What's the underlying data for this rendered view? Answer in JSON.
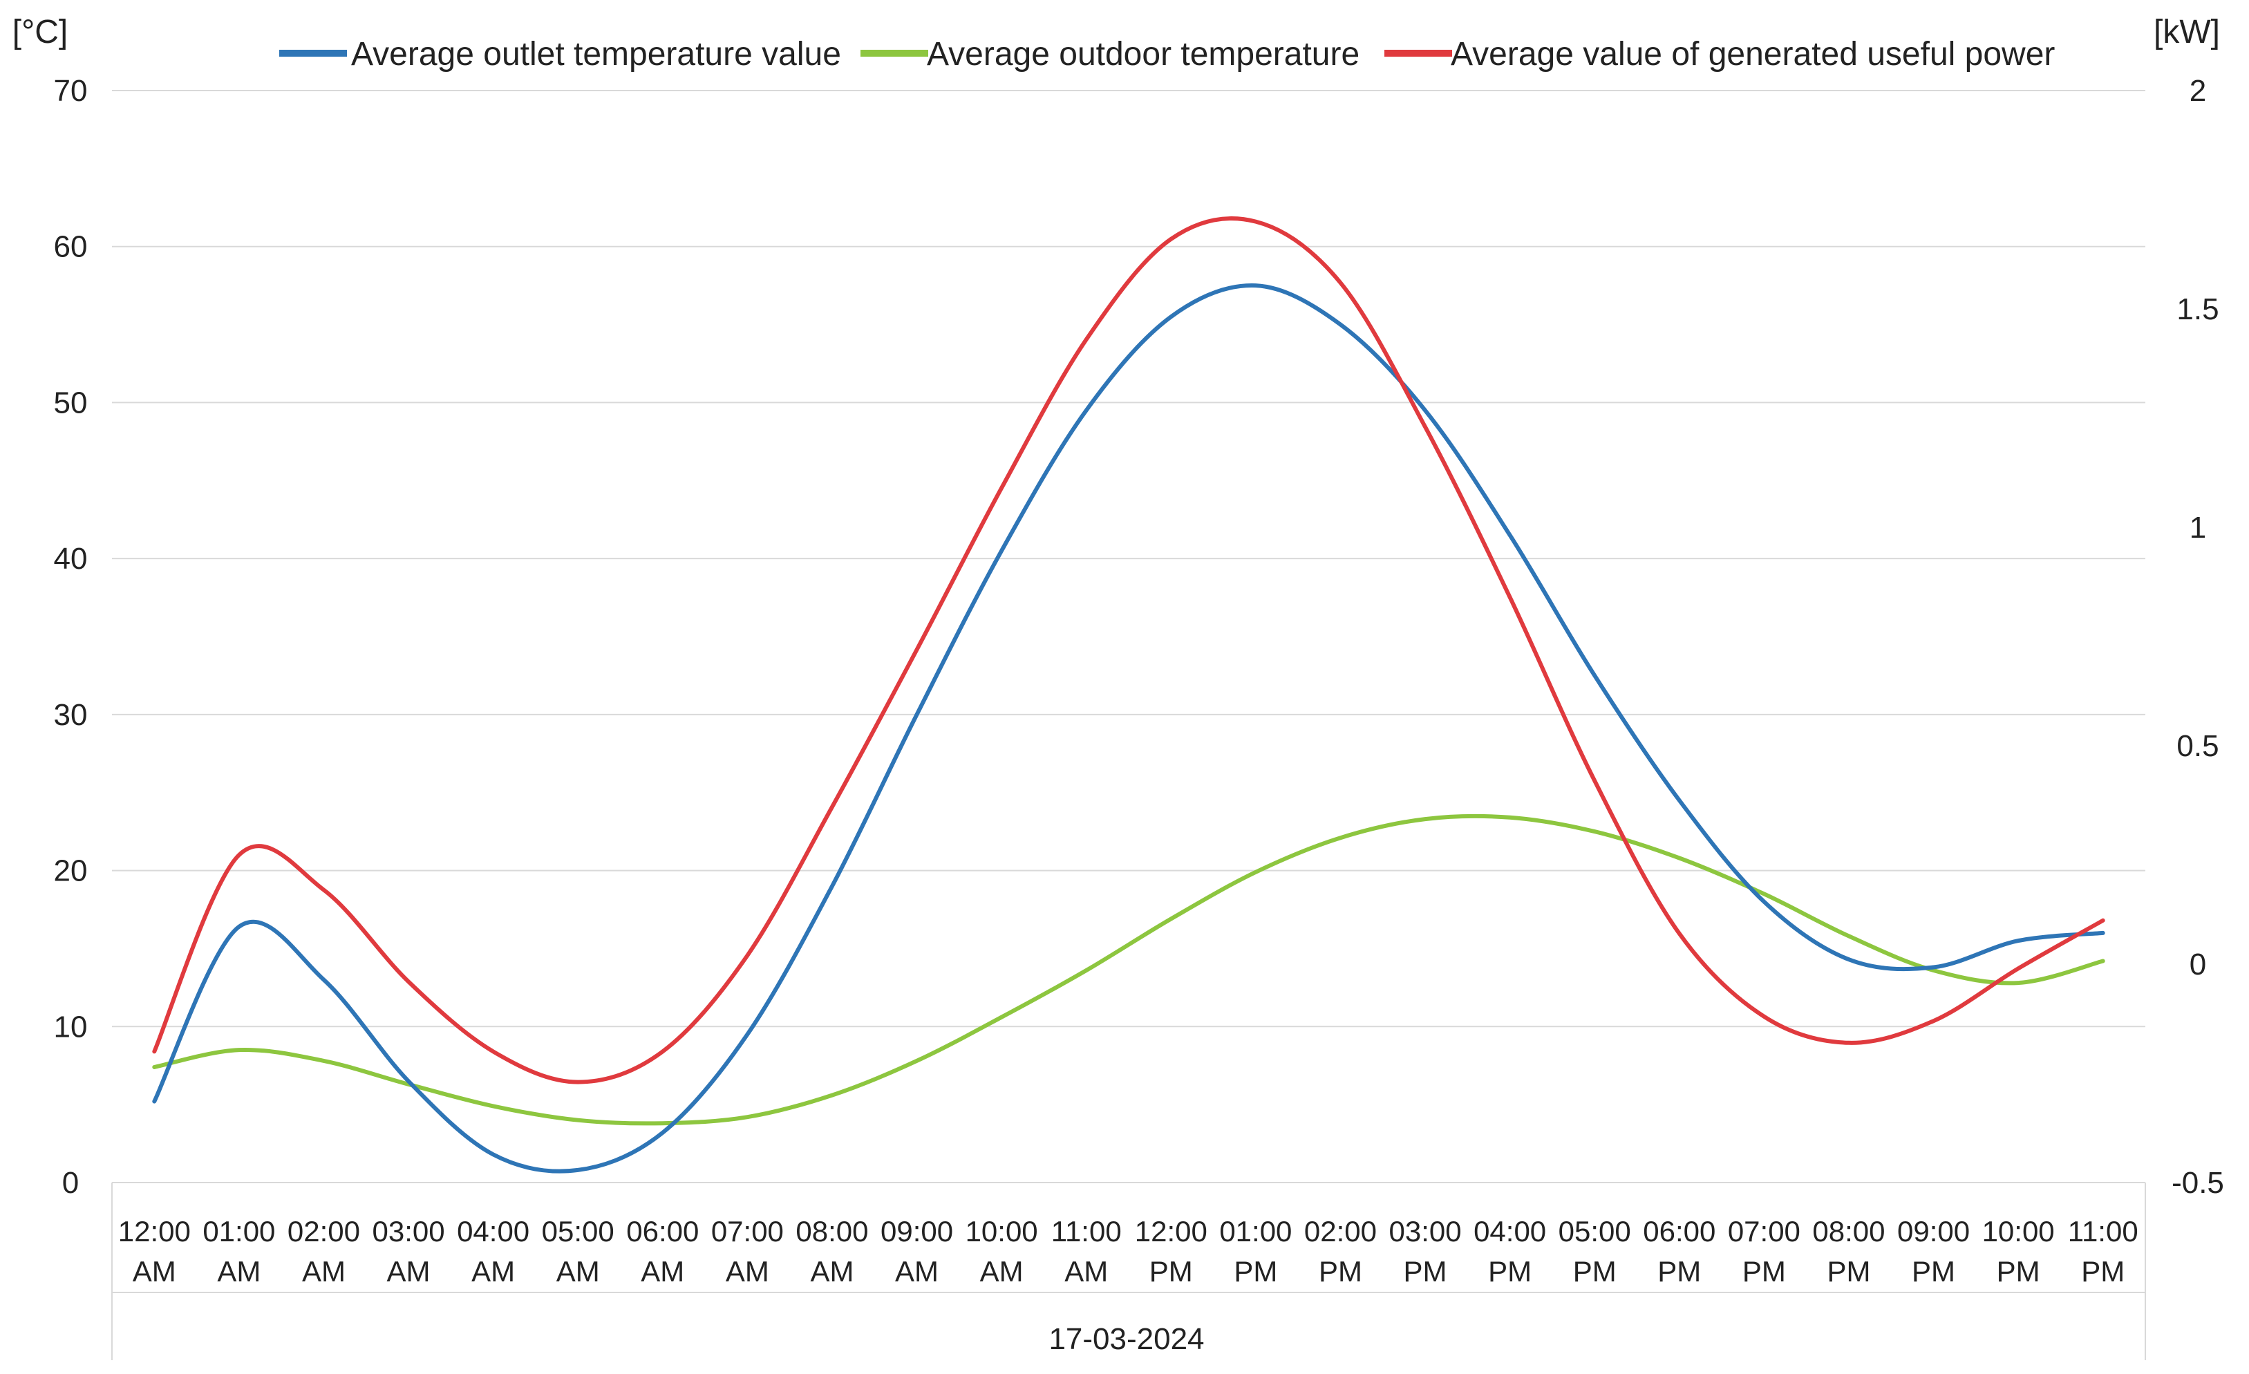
{
  "chart_data": {
    "type": "line",
    "title": "",
    "xlabel": "17-03-2024",
    "left_axis": {
      "unit": "[°C]",
      "ylim": [
        0,
        70
      ],
      "ticks": [
        0,
        10,
        20,
        30,
        40,
        50,
        60,
        70
      ]
    },
    "right_axis": {
      "unit": "[kW]",
      "ylim": [
        -0.5,
        2
      ],
      "ticks": [
        "-0.5",
        "0",
        "0.5",
        "1",
        "1.5",
        "2"
      ]
    },
    "categories": [
      [
        "12:00",
        "AM"
      ],
      [
        "01:00",
        "AM"
      ],
      [
        "02:00",
        "AM"
      ],
      [
        "03:00",
        "AM"
      ],
      [
        "04:00",
        "AM"
      ],
      [
        "05:00",
        "AM"
      ],
      [
        "06:00",
        "AM"
      ],
      [
        "07:00",
        "AM"
      ],
      [
        "08:00",
        "AM"
      ],
      [
        "09:00",
        "AM"
      ],
      [
        "10:00",
        "AM"
      ],
      [
        "11:00",
        "AM"
      ],
      [
        "12:00",
        "PM"
      ],
      [
        "01:00",
        "PM"
      ],
      [
        "02:00",
        "PM"
      ],
      [
        "03:00",
        "PM"
      ],
      [
        "04:00",
        "PM"
      ],
      [
        "05:00",
        "PM"
      ],
      [
        "06:00",
        "PM"
      ],
      [
        "07:00",
        "PM"
      ],
      [
        "08:00",
        "PM"
      ],
      [
        "09:00",
        "PM"
      ],
      [
        "10:00",
        "PM"
      ],
      [
        "11:00",
        "PM"
      ]
    ],
    "grid": true,
    "legend_position": "top",
    "series": [
      {
        "name": "Average outlet temperature value",
        "axis": "left",
        "color": "#2E75B6",
        "values": [
          5.2,
          16.4,
          13.0,
          6.5,
          1.8,
          0.8,
          3.2,
          9.5,
          19.0,
          30.0,
          40.5,
          49.5,
          55.5,
          57.5,
          55.0,
          49.5,
          41.5,
          32.5,
          24.5,
          18.0,
          14.3,
          13.8,
          15.5,
          16.0
        ]
      },
      {
        "name": "Average outdoor temperature",
        "axis": "left",
        "color": "#8DC63F",
        "values": [
          7.4,
          8.5,
          7.8,
          6.3,
          4.9,
          4.0,
          3.8,
          4.2,
          5.6,
          7.8,
          10.6,
          13.6,
          16.9,
          19.9,
          22.1,
          23.3,
          23.4,
          22.5,
          20.8,
          18.5,
          15.8,
          13.6,
          12.8,
          14.2
        ]
      },
      {
        "name": "Average value of generated useful power",
        "axis": "right",
        "color": "#E03A3E",
        "values": [
          -0.2,
          0.25,
          0.17,
          -0.04,
          -0.2,
          -0.27,
          -0.2,
          0.02,
          0.36,
          0.72,
          1.09,
          1.43,
          1.66,
          1.7,
          1.56,
          1.23,
          0.84,
          0.42,
          0.07,
          -0.12,
          -0.18,
          -0.13,
          -0.01,
          0.1
        ]
      }
    ]
  }
}
